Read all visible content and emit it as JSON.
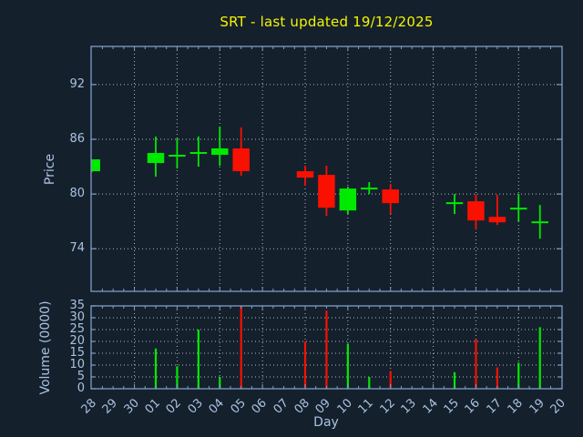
{
  "title": "SRT - last updated 19/12/2025",
  "colors": {
    "background": "#15202d",
    "title": "#f4f400",
    "axis_spine": "#7e9fc4",
    "tick_label": "#a9c2e0",
    "grid": "#b0b8c0",
    "bullish": "#00ea00",
    "bearish": "#fa1000"
  },
  "price_axis": {
    "label": "Price",
    "ticks": [
      92,
      86,
      80,
      74
    ]
  },
  "volume_axis": {
    "label": "Volume (0000)",
    "ticks": [
      35,
      30,
      25,
      20,
      15,
      10,
      5,
      0
    ]
  },
  "x_axis": {
    "label": "Day",
    "categories": [
      "28",
      "29",
      "30",
      "01",
      "02",
      "03",
      "04",
      "05",
      "06",
      "07",
      "08",
      "09",
      "10",
      "11",
      "12",
      "13",
      "14",
      "15",
      "16",
      "17",
      "18",
      "19",
      "20"
    ]
  },
  "chart_data": {
    "type": "candlestick",
    "title": "SRT - last updated 19/12/2025",
    "xlabel": "Day",
    "ylabel_price": "Price",
    "ylabel_volume": "Volume (0000)",
    "x_categories": [
      "28",
      "29",
      "30",
      "01",
      "02",
      "03",
      "04",
      "05",
      "06",
      "07",
      "08",
      "09",
      "10",
      "11",
      "12",
      "13",
      "14",
      "15",
      "16",
      "17",
      "18",
      "19",
      "20"
    ],
    "price_ylim": [
      69.3,
      96.2
    ],
    "volume_ylim": [
      0,
      35
    ],
    "grid": true,
    "legend": "none",
    "ohlcv": [
      {
        "day": "28",
        "open": 82.5,
        "high": 83.8,
        "low": 82.4,
        "close": 83.8,
        "volume_0000": 0
      },
      {
        "day": "01",
        "open": 83.4,
        "high": 86.3,
        "low": 81.9,
        "close": 84.5,
        "volume_0000": 17
      },
      {
        "day": "02",
        "open": 84.1,
        "high": 86.1,
        "low": 82.8,
        "close": 84.3,
        "volume_0000": 9.5
      },
      {
        "day": "03",
        "open": 84.4,
        "high": 86.3,
        "low": 83.0,
        "close": 84.6,
        "volume_0000": 25
      },
      {
        "day": "04",
        "open": 84.3,
        "high": 87.4,
        "low": 83.1,
        "close": 85.0,
        "volume_0000": 5
      },
      {
        "day": "05",
        "open": 85.0,
        "high": 87.3,
        "low": 82.0,
        "close": 82.5,
        "volume_0000": 35
      },
      {
        "day": "08",
        "open": 82.5,
        "high": 83.1,
        "low": 80.9,
        "close": 81.8,
        "volume_0000": 20
      },
      {
        "day": "09",
        "open": 82.1,
        "high": 83.1,
        "low": 77.6,
        "close": 78.5,
        "volume_0000": 33
      },
      {
        "day": "10",
        "open": 78.2,
        "high": 80.8,
        "low": 77.8,
        "close": 80.6,
        "volume_0000": 19
      },
      {
        "day": "11",
        "open": 80.5,
        "high": 81.3,
        "low": 80.0,
        "close": 80.7,
        "volume_0000": 5
      },
      {
        "day": "12",
        "open": 80.5,
        "high": 81.1,
        "low": 77.8,
        "close": 79.0,
        "volume_0000": 7.5
      },
      {
        "day": "15",
        "open": 78.9,
        "high": 80.0,
        "low": 77.8,
        "close": 79.1,
        "volume_0000": 7
      },
      {
        "day": "16",
        "open": 79.2,
        "high": 80.0,
        "low": 76.1,
        "close": 77.1,
        "volume_0000": 21
      },
      {
        "day": "17",
        "open": 77.5,
        "high": 79.9,
        "low": 76.6,
        "close": 76.9,
        "volume_0000": 9
      },
      {
        "day": "18",
        "open": 78.3,
        "high": 80.0,
        "low": 77.0,
        "close": 78.5,
        "volume_0000": 11
      },
      {
        "day": "19",
        "open": 76.9,
        "high": 78.8,
        "low": 75.1,
        "close": 77.0,
        "volume_0000": 26
      }
    ]
  }
}
